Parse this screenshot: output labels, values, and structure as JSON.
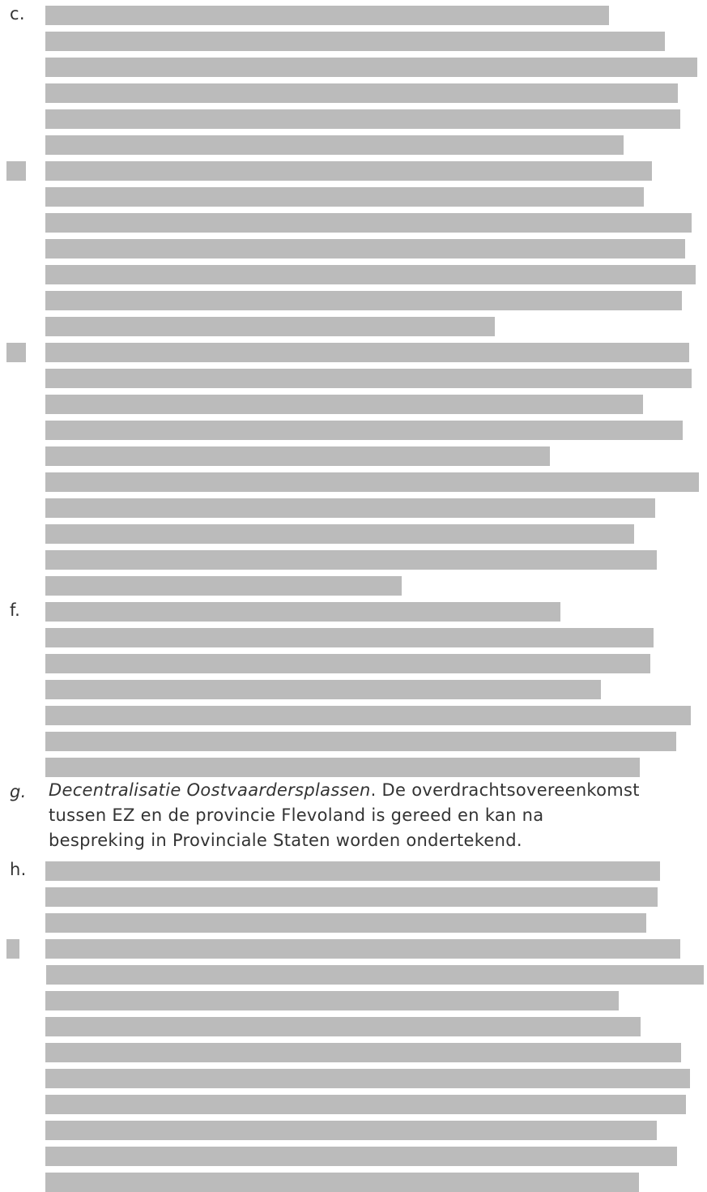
{
  "items": {
    "c": {
      "label": "c."
    },
    "f": {
      "label": "f."
    },
    "g": {
      "label": "g.",
      "title": "Decentralisatie Oostvaardersplassen",
      "line1_rest": ". De overdrachtsovereenkomst",
      "line2": "tussen EZ en de provincie Flevoland is gereed en kan na",
      "line3": "bespreking in Provinciale Staten worden ondertekend."
    },
    "h": {
      "label": "h."
    }
  },
  "redaction_color": "#bbbbbb",
  "text_color": "#333333"
}
